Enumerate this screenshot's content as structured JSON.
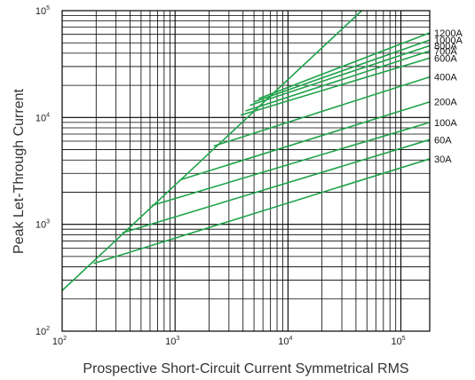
{
  "chart_data": {
    "type": "line",
    "xscale": "log",
    "yscale": "log",
    "xlim": [
      100,
      180000
    ],
    "ylim": [
      100,
      100000
    ],
    "xlabel": "Prospective Short-Circuit Current Symmetrical RMS",
    "ylabel": "Peak Let-Through Current",
    "x_ticks": [
      {
        "base": "10",
        "exp": "2",
        "value": 100
      },
      {
        "base": "10",
        "exp": "3",
        "value": 1000
      },
      {
        "base": "10",
        "exp": "4",
        "value": 10000
      },
      {
        "base": "10",
        "exp": "5",
        "value": 100000
      }
    ],
    "y_ticks": [
      {
        "base": "10",
        "exp": "2",
        "value": 100
      },
      {
        "base": "10",
        "exp": "3",
        "value": 1000
      },
      {
        "base": "10",
        "exp": "4",
        "value": 10000
      },
      {
        "base": "10",
        "exp": "5",
        "value": 100000
      }
    ],
    "grid": true,
    "line_color": "#1fa34a",
    "reference_line": {
      "x": [
        100,
        45000
      ],
      "y": [
        240,
        100000
      ]
    },
    "series": [
      {
        "name": "1200A",
        "x": [
          5500,
          180000
        ],
        "y": [
          15000,
          62000
        ]
      },
      {
        "name": "1000A",
        "x": [
          5000,
          180000
        ],
        "y": [
          14000,
          53000
        ]
      },
      {
        "name": "800A",
        "x": [
          4600,
          180000
        ],
        "y": [
          13000,
          47000
        ]
      },
      {
        "name": "700A",
        "x": [
          4200,
          180000
        ],
        "y": [
          11500,
          42000
        ]
      },
      {
        "name": "600A",
        "x": [
          3800,
          180000
        ],
        "y": [
          10500,
          36000
        ]
      },
      {
        "name": "400A",
        "x": [
          2200,
          180000
        ],
        "y": [
          5400,
          24000
        ]
      },
      {
        "name": "200A",
        "x": [
          1100,
          180000
        ],
        "y": [
          2600,
          14000
        ]
      },
      {
        "name": "100A",
        "x": [
          620,
          180000
        ],
        "y": [
          1500,
          9000
        ]
      },
      {
        "name": "60A",
        "x": [
          340,
          180000
        ],
        "y": [
          830,
          6200
        ]
      },
      {
        "name": "30A",
        "x": [
          190,
          180000
        ],
        "y": [
          430,
          4100
        ]
      }
    ]
  }
}
